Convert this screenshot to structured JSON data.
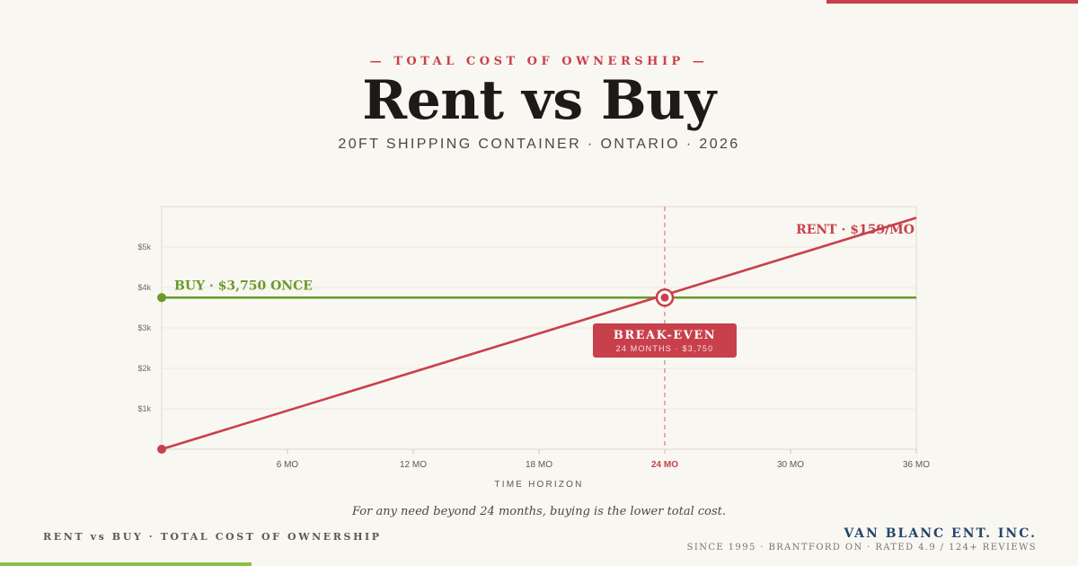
{
  "header": {
    "eyebrow": "— TOTAL COST OF OWNERSHIP —",
    "title": "Rent vs Buy",
    "subtitle": "20FT SHIPPING CONTAINER · ONTARIO · 2026"
  },
  "colors": {
    "rent": "#c8404c",
    "buy": "#6a9a2a",
    "accent_green": "#8cc043",
    "brand": "#24456e",
    "background": "#f9f7f1"
  },
  "chart_data": {
    "type": "line",
    "xlabel": "TIME HORIZON",
    "xlim": [
      0,
      36
    ],
    "ylim": [
      0,
      6000
    ],
    "x_ticks": [
      {
        "value": 6,
        "label": "6 MO",
        "highlight": false
      },
      {
        "value": 12,
        "label": "12 MO",
        "highlight": false
      },
      {
        "value": 18,
        "label": "18 MO",
        "highlight": false
      },
      {
        "value": 24,
        "label": "24 MO",
        "highlight": true
      },
      {
        "value": 30,
        "label": "30 MO",
        "highlight": false
      },
      {
        "value": 36,
        "label": "36 MO",
        "highlight": false
      }
    ],
    "y_ticks": [
      {
        "value": 1000,
        "label": "$1k"
      },
      {
        "value": 2000,
        "label": "$2k"
      },
      {
        "value": 3000,
        "label": "$3k"
      },
      {
        "value": 4000,
        "label": "$4k"
      },
      {
        "value": 5000,
        "label": "$5k"
      }
    ],
    "grid": true,
    "series": [
      {
        "key": "buy",
        "label": "BUY · $3,750 ONCE",
        "x": [
          0,
          36
        ],
        "y": [
          3750,
          3750
        ],
        "color": "#6a9a2a"
      },
      {
        "key": "rent",
        "label": "RENT · $159/MO",
        "x": [
          0,
          36
        ],
        "y": [
          0,
          5724
        ],
        "color": "#c8404c"
      }
    ],
    "break_even": {
      "x": 24,
      "y": 3750,
      "title": "BREAK-EVEN",
      "detail": "24 MONTHS · $3,750"
    }
  },
  "footnote": "For any need beyond 24 months, buying is the lower total cost.",
  "footer": {
    "left": "RENT vs BUY · TOTAL COST OF OWNERSHIP",
    "brand_name": "VAN BLANC ENT. INC.",
    "brand_meta": "SINCE 1995 · BRANTFORD ON · RATED 4.9 / 124+ REVIEWS"
  }
}
